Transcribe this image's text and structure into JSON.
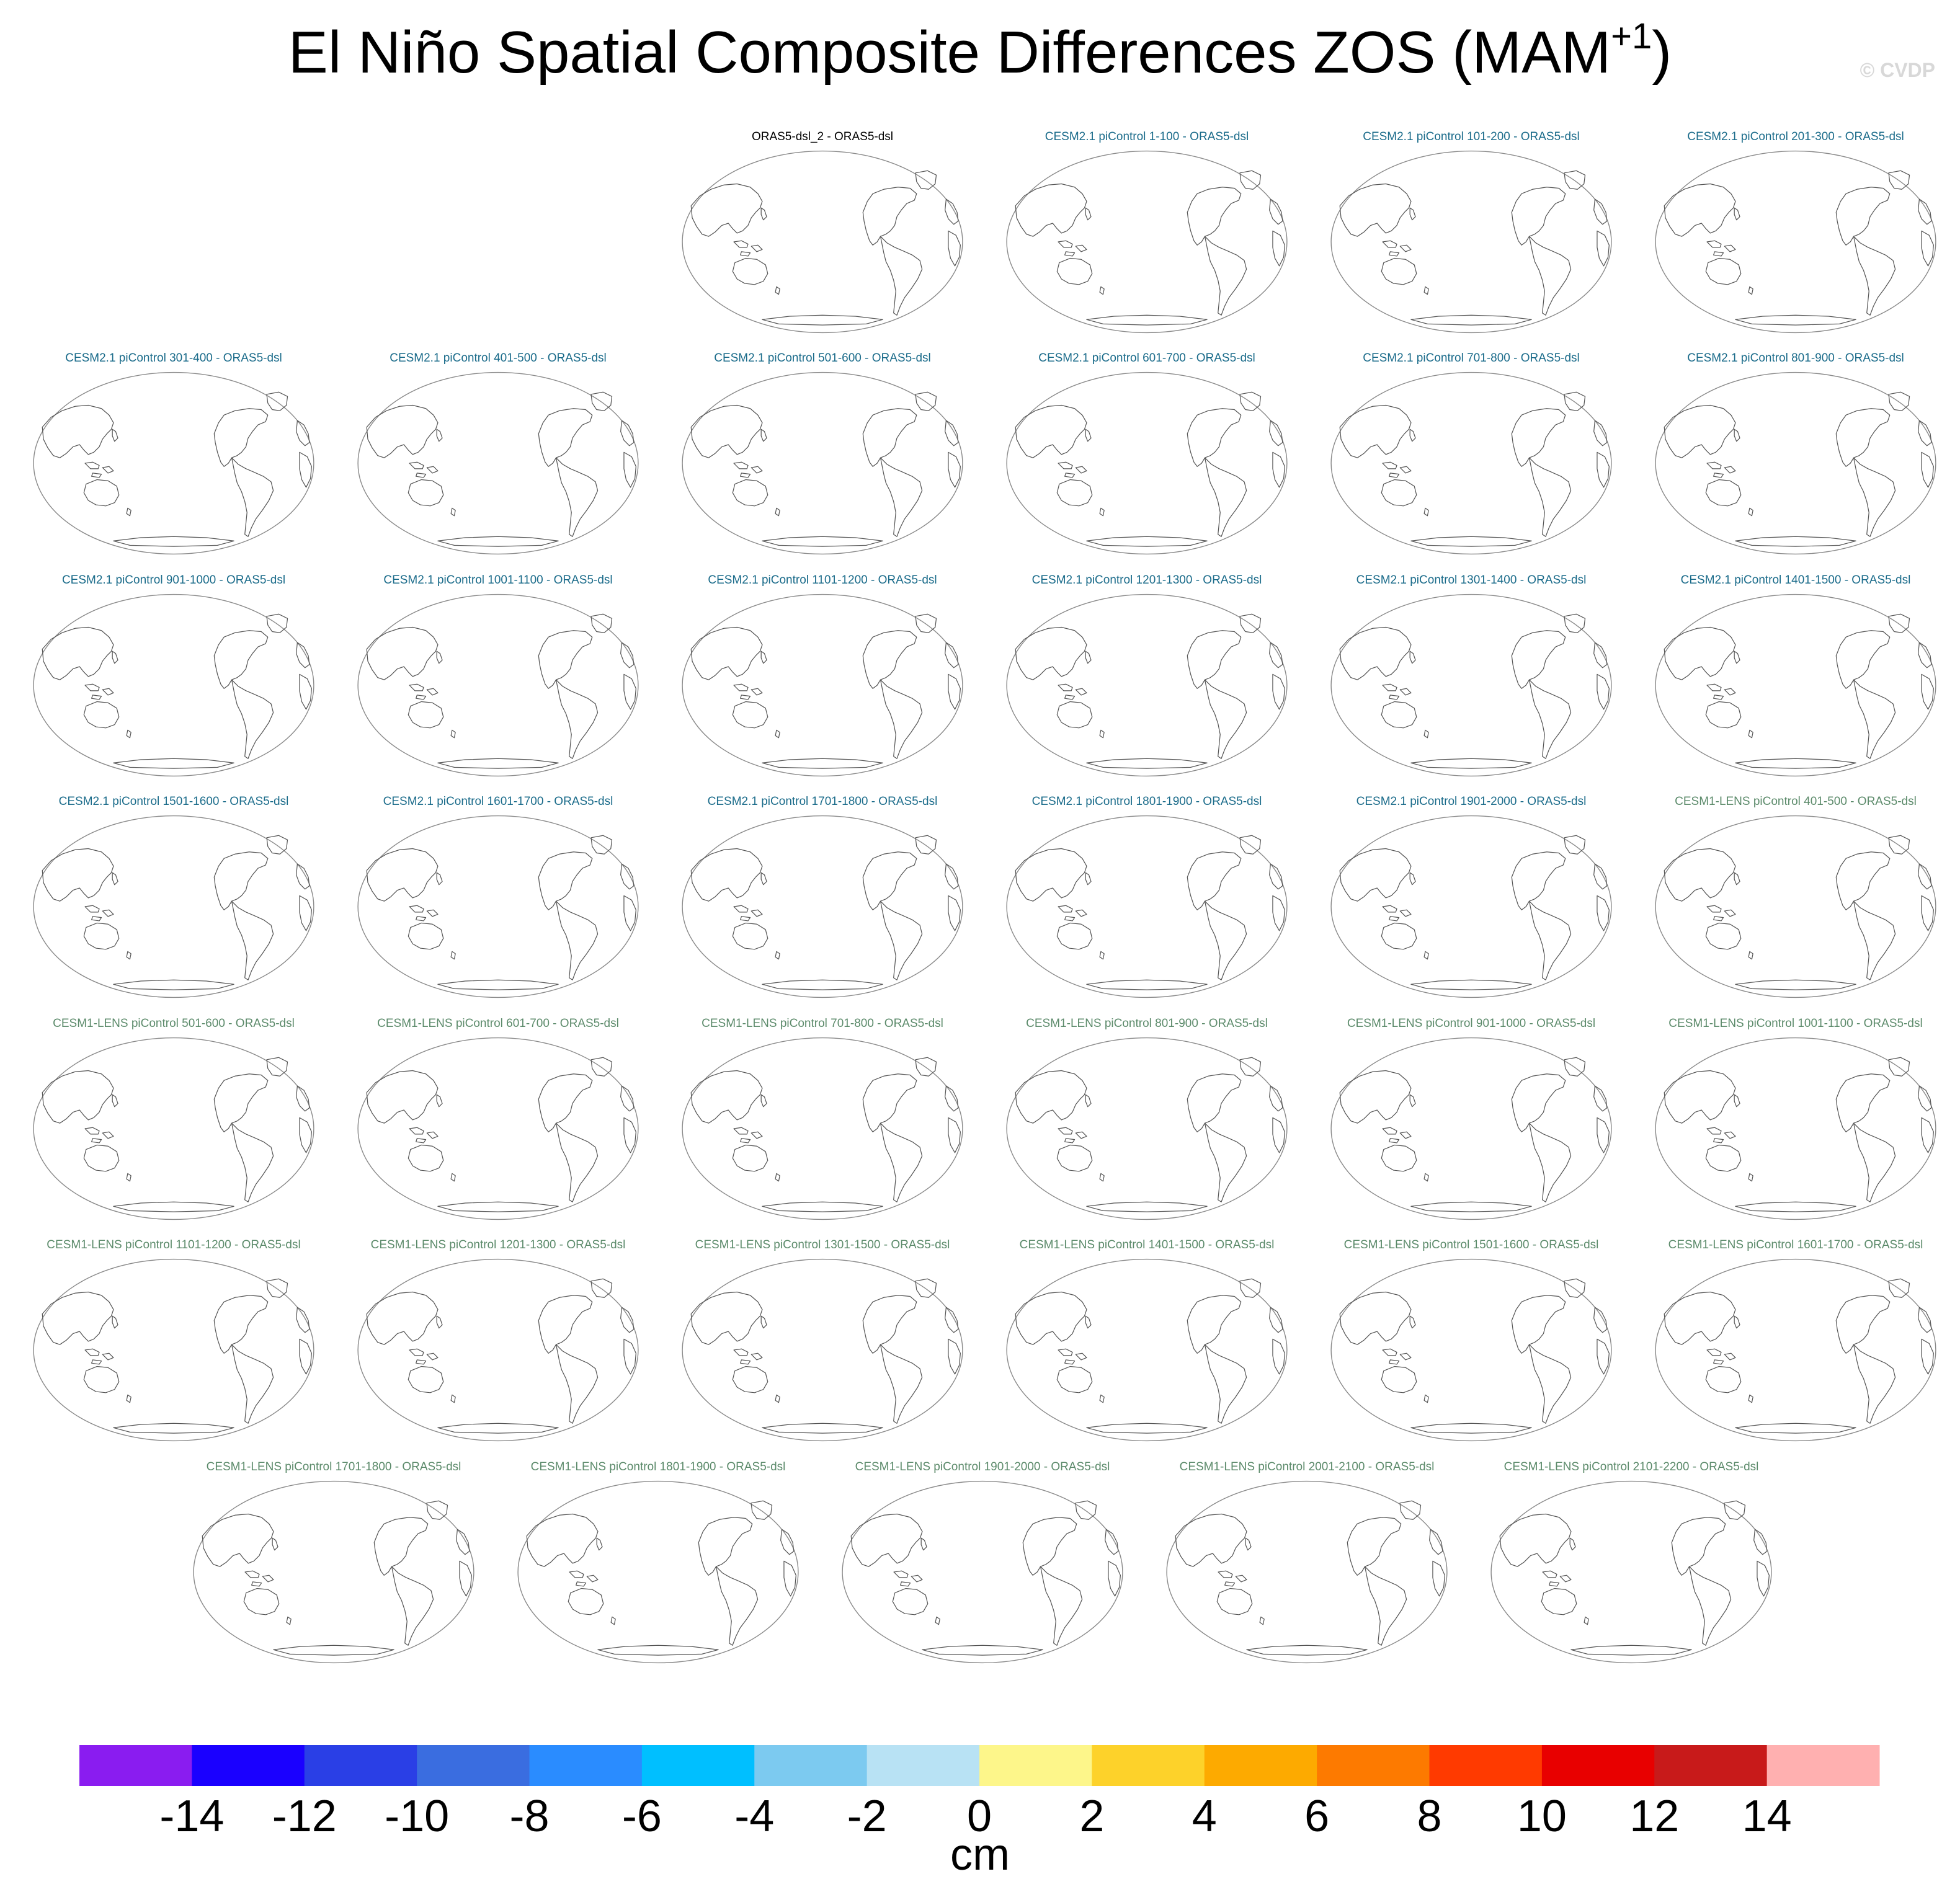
{
  "title": {
    "text": "El Niño Spatial Composite Differences ZOS (MAM",
    "superscript": "+1",
    "close": ")"
  },
  "watermark": "© CVDP",
  "colors": {
    "reference": "#000000",
    "cesm2": "#1a6b8a",
    "cesm1": "#5b8a6a",
    "coastline": "#8a8a8a"
  },
  "chart_data": {
    "type": "heatmap",
    "variable": "ZOS",
    "season": "MAM+1",
    "units": "cm",
    "panels": [
      {
        "title": "ORAS5-dsl_2 - ORAS5-dsl",
        "group": "reference"
      },
      {
        "title": "CESM2.1 piControl 1-100 - ORAS5-dsl",
        "group": "cesm2"
      },
      {
        "title": "CESM2.1 piControl 101-200 - ORAS5-dsl",
        "group": "cesm2"
      },
      {
        "title": "CESM2.1 piControl 201-300 - ORAS5-dsl",
        "group": "cesm2"
      },
      {
        "title": "CESM2.1 piControl 301-400 - ORAS5-dsl",
        "group": "cesm2"
      },
      {
        "title": "CESM2.1 piControl 401-500 - ORAS5-dsl",
        "group": "cesm2"
      },
      {
        "title": "CESM2.1 piControl 501-600 - ORAS5-dsl",
        "group": "cesm2"
      },
      {
        "title": "CESM2.1 piControl 601-700 - ORAS5-dsl",
        "group": "cesm2"
      },
      {
        "title": "CESM2.1 piControl 701-800 - ORAS5-dsl",
        "group": "cesm2"
      },
      {
        "title": "CESM2.1 piControl 801-900 - ORAS5-dsl",
        "group": "cesm2"
      },
      {
        "title": "CESM2.1 piControl 901-1000 - ORAS5-dsl",
        "group": "cesm2"
      },
      {
        "title": "CESM2.1 piControl 1001-1100 - ORAS5-dsl",
        "group": "cesm2"
      },
      {
        "title": "CESM2.1 piControl 1101-1200 - ORAS5-dsl",
        "group": "cesm2"
      },
      {
        "title": "CESM2.1 piControl 1201-1300 - ORAS5-dsl",
        "group": "cesm2"
      },
      {
        "title": "CESM2.1 piControl 1301-1400 - ORAS5-dsl",
        "group": "cesm2"
      },
      {
        "title": "CESM2.1 piControl 1401-1500 - ORAS5-dsl",
        "group": "cesm2"
      },
      {
        "title": "CESM2.1 piControl 1501-1600 - ORAS5-dsl",
        "group": "cesm2"
      },
      {
        "title": "CESM2.1 piControl 1601-1700 - ORAS5-dsl",
        "group": "cesm2"
      },
      {
        "title": "CESM2.1 piControl 1701-1800 - ORAS5-dsl",
        "group": "cesm2"
      },
      {
        "title": "CESM2.1 piControl 1801-1900 - ORAS5-dsl",
        "group": "cesm2"
      },
      {
        "title": "CESM2.1 piControl 1901-2000 - ORAS5-dsl",
        "group": "cesm2"
      },
      {
        "title": "CESM1-LENS piControl 401-500 - ORAS5-dsl",
        "group": "cesm1"
      },
      {
        "title": "CESM1-LENS piControl 501-600 - ORAS5-dsl",
        "group": "cesm1"
      },
      {
        "title": "CESM1-LENS piControl 601-700 - ORAS5-dsl",
        "group": "cesm1"
      },
      {
        "title": "CESM1-LENS piControl 701-800 - ORAS5-dsl",
        "group": "cesm1"
      },
      {
        "title": "CESM1-LENS piControl 801-900 - ORAS5-dsl",
        "group": "cesm1"
      },
      {
        "title": "CESM1-LENS piControl 901-1000 - ORAS5-dsl",
        "group": "cesm1"
      },
      {
        "title": "CESM1-LENS piControl 1001-1100 - ORAS5-dsl",
        "group": "cesm1"
      },
      {
        "title": "CESM1-LENS piControl 1101-1200 - ORAS5-dsl",
        "group": "cesm1"
      },
      {
        "title": "CESM1-LENS piControl 1201-1300 - ORAS5-dsl",
        "group": "cesm1"
      },
      {
        "title": "CESM1-LENS piControl 1301-1500 - ORAS5-dsl",
        "group": "cesm1"
      },
      {
        "title": "CESM1-LENS piControl 1401-1500 - ORAS5-dsl",
        "group": "cesm1"
      },
      {
        "title": "CESM1-LENS piControl 1501-1600 - ORAS5-dsl",
        "group": "cesm1"
      },
      {
        "title": "CESM1-LENS piControl 1601-1700 - ORAS5-dsl",
        "group": "cesm1"
      },
      {
        "title": "CESM1-LENS piControl 1701-1800 - ORAS5-dsl",
        "group": "cesm1"
      },
      {
        "title": "CESM1-LENS piControl 1801-1900 - ORAS5-dsl",
        "group": "cesm1"
      },
      {
        "title": "CESM1-LENS piControl 1901-2000 - ORAS5-dsl",
        "group": "cesm1"
      },
      {
        "title": "CESM1-LENS piControl 2001-2100 - ORAS5-dsl",
        "group": "cesm1"
      },
      {
        "title": "CESM1-LENS piControl 2101-2200 - ORAS5-dsl",
        "group": "cesm1"
      }
    ],
    "colorbar": {
      "units": "cm",
      "ticks": [
        -14,
        -12,
        -10,
        -8,
        -6,
        -4,
        -2,
        0,
        2,
        4,
        6,
        8,
        10,
        12,
        14
      ],
      "colors": [
        "#8a1cf0",
        "#1a00ff",
        "#2a3fe6",
        "#3a6de0",
        "#2a8cff",
        "#00bfff",
        "#7ccaf0",
        "#b8e2f4",
        "#fdf68a",
        "#fdd22a",
        "#fdaa00",
        "#fd7a00",
        "#ff3a00",
        "#e80000",
        "#c81a1a",
        "#ffb0b0"
      ]
    }
  }
}
